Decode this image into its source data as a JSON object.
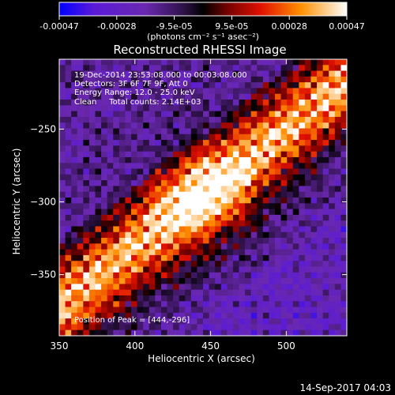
{
  "chart_data": {
    "type": "heatmap",
    "title": "Reconstructed RHESSI Image",
    "xlabel": "Heliocentric X (arcsec)",
    "ylabel": "Heliocentric Y (arcsec)",
    "xlim": [
      350,
      540
    ],
    "ylim": [
      -392,
      -202
    ],
    "x_ticks": [
      350,
      400,
      450,
      500
    ],
    "y_ticks": [
      -250,
      -300,
      -350
    ],
    "colorbar": {
      "ticks": [
        "-0.00047",
        "-0.00028",
        "-9.5e-05",
        "9.5e-05",
        "0.00028",
        "0.00047"
      ],
      "unit_label": "(photons cm⁻² s⁻¹ asec⁻²)",
      "range": [
        -0.00047,
        0.00047
      ],
      "colors": [
        "#0000ff",
        "#7a1ec8",
        "#5a2aa0",
        "#000000",
        "#a00000",
        "#ff2200",
        "#ff9a00",
        "#ffffff"
      ]
    },
    "peak": {
      "x": 444,
      "y": -296
    },
    "emission_band": "diagonal bright ridge from lower-left to upper-right of the field",
    "annotations": [
      "19-Dec-2014 23:53:08.000 to 00:03:08.000",
      "Detectors: 3F 6F 7F 9F, Att 0",
      "Energy Range: 12.0 - 25.0 keV",
      "Clean     Total counts: 2.14E+03"
    ],
    "peak_label": "Position of Peak = [444,-296]"
  },
  "footer": {
    "timestamp": "14-Sep-2017 04:03"
  }
}
